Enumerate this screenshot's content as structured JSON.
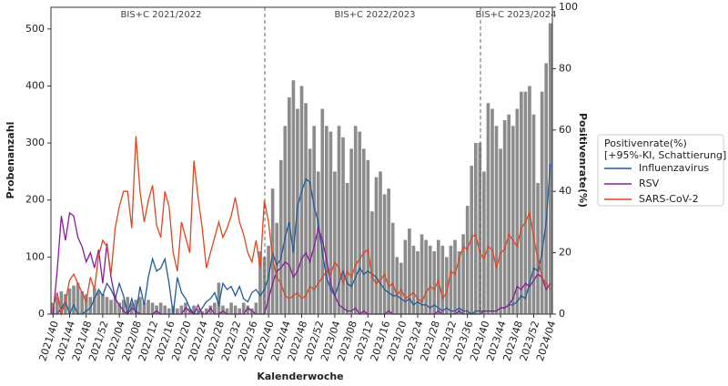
{
  "chart_data": {
    "type": "bar_line",
    "xlabel": "Kalenderwoche",
    "ylabel": "Probenanzahl",
    "y2label": "Positivenrate(%)",
    "seasons": [
      "BIS+C 2021/2022",
      "BIS+C 2022/2023",
      "BIS+C 2023/2024"
    ],
    "legend_title": [
      "Positivenrate(%)",
      "[+95%-KI, Schattierung]"
    ],
    "legend_loc": "right",
    "categories": [
      "2021/40",
      null,
      null,
      null,
      "2021/44",
      null,
      null,
      null,
      "2021/48",
      null,
      null,
      null,
      "2021/52",
      null,
      null,
      null,
      "2022/04",
      null,
      null,
      null,
      "2022/08",
      null,
      null,
      null,
      "2022/12",
      null,
      null,
      null,
      "2022/16",
      null,
      null,
      null,
      "2022/20",
      null,
      null,
      null,
      "2022/24",
      null,
      null,
      null,
      "2022/28",
      null,
      null,
      null,
      "2022/32",
      null,
      null,
      null,
      "2022/36",
      null,
      null,
      null,
      "2022/40",
      null,
      null,
      null,
      "2022/44",
      null,
      null,
      null,
      "2022/48",
      null,
      null,
      null,
      "2022/52",
      null,
      null,
      null,
      "2023/04",
      null,
      null,
      null,
      "2023/08",
      null,
      null,
      null,
      "2023/12",
      null,
      null,
      null,
      "2023/16",
      null,
      null,
      null,
      "2023/20",
      null,
      null,
      null,
      "2023/24",
      null,
      null,
      null,
      "2023/28",
      null,
      null,
      null,
      "2023/32",
      null,
      null,
      null,
      "2023/36",
      null,
      null,
      null,
      "2023/40",
      null,
      null,
      null,
      "2023/44",
      null,
      null,
      null,
      "2023/48",
      null,
      null,
      null,
      "2023/52",
      null,
      null,
      null,
      "2024/04"
    ],
    "bars": {
      "color": "#8c8c8c",
      "values": [
        20,
        30,
        40,
        35,
        45,
        50,
        55,
        40,
        35,
        30,
        45,
        40,
        35,
        30,
        25,
        30,
        20,
        25,
        30,
        20,
        25,
        30,
        20,
        25,
        20,
        15,
        20,
        15,
        10,
        15,
        10,
        15,
        20,
        10,
        15,
        10,
        5,
        10,
        15,
        20,
        55,
        15,
        10,
        20,
        15,
        10,
        20,
        15,
        10,
        20,
        110,
        100,
        120,
        220,
        160,
        270,
        330,
        380,
        410,
        360,
        400,
        370,
        290,
        330,
        250,
        360,
        330,
        320,
        250,
        330,
        310,
        230,
        290,
        330,
        320,
        290,
        270,
        180,
        240,
        250,
        210,
        220,
        160,
        100,
        90,
        130,
        150,
        120,
        110,
        140,
        130,
        120,
        110,
        130,
        120,
        100,
        120,
        130,
        110,
        140,
        190,
        260,
        300,
        300,
        250,
        370,
        360,
        330,
        290,
        340,
        350,
        330,
        360,
        390,
        390,
        400,
        350,
        230,
        390,
        440,
        510
      ]
    },
    "series": [
      {
        "name": "Influenzavirus",
        "color": "#1f5c99",
        "axis": "y2",
        "values": [
          0,
          0,
          2,
          4,
          0,
          3,
          0,
          0,
          1,
          2,
          5,
          8,
          6,
          10,
          8,
          5,
          10,
          6,
          0,
          5,
          0,
          9,
          3,
          12,
          18,
          14,
          15,
          18,
          10,
          0,
          12,
          7,
          5,
          2,
          0,
          0,
          2,
          4,
          5,
          7,
          3,
          10,
          8,
          9,
          6,
          9,
          5,
          4,
          7,
          8,
          6,
          8,
          12,
          20,
          16,
          18,
          25,
          30,
          20,
          35,
          40,
          44,
          43,
          35,
          30,
          20,
          12,
          8,
          6,
          10,
          14,
          10,
          9,
          12,
          15,
          13,
          14,
          13,
          12,
          10,
          8,
          7,
          6,
          6,
          5,
          4,
          5,
          3,
          4,
          3,
          3,
          2,
          3,
          2,
          1,
          2,
          1,
          1,
          2,
          1,
          1,
          0,
          1,
          1,
          1,
          1,
          1,
          1,
          2,
          2,
          3,
          3,
          4,
          6,
          5,
          10,
          15,
          14,
          20,
          30,
          49
        ]
      },
      {
        "name": "RSV",
        "color": "#8b1a9b",
        "axis": "y2",
        "values": [
          0,
          14,
          32,
          24,
          33,
          32,
          25,
          22,
          17,
          20,
          15,
          21,
          10,
          23,
          12,
          5,
          3,
          1,
          0,
          2,
          1,
          0,
          0,
          0,
          0,
          1,
          0,
          0,
          0,
          0,
          0,
          0,
          2,
          1,
          0,
          3,
          0,
          0,
          2,
          0,
          0,
          1,
          0,
          0,
          0,
          0,
          0,
          2,
          1,
          0,
          0,
          0,
          5,
          10,
          14,
          15,
          17,
          16,
          12,
          14,
          18,
          20,
          17,
          22,
          28,
          24,
          18,
          10,
          6,
          3,
          2,
          1,
          1,
          2,
          0,
          1,
          0,
          0,
          0,
          0,
          0,
          1,
          0,
          0,
          0,
          0,
          0,
          0,
          0,
          0,
          0,
          0,
          0,
          1,
          0,
          0,
          0,
          0,
          1,
          0,
          0,
          0,
          0,
          0,
          1,
          1,
          1,
          1,
          2,
          2,
          3,
          5,
          9,
          8,
          10,
          9,
          11,
          13,
          12,
          8,
          10
        ]
      },
      {
        "name": "SARS-CoV-2",
        "color": "#e0451f",
        "axis": "y2",
        "values": [
          2,
          7,
          0,
          4,
          11,
          13,
          10,
          7,
          4,
          12,
          8,
          19,
          24,
          22,
          13,
          28,
          35,
          40,
          40,
          28,
          58,
          40,
          30,
          37,
          42,
          29,
          25,
          40,
          35,
          20,
          14,
          30,
          25,
          20,
          50,
          38,
          28,
          15,
          20,
          25,
          30,
          25,
          28,
          32,
          38,
          30,
          26,
          20,
          17,
          24,
          15,
          37,
          30,
          18,
          12,
          10,
          6,
          5,
          6,
          7,
          5,
          6,
          9,
          8,
          10,
          12,
          14,
          13,
          17,
          15,
          10,
          14,
          12,
          16,
          18,
          20,
          21,
          12,
          10,
          11,
          13,
          9,
          10,
          6,
          8,
          5,
          6,
          7,
          5,
          4,
          7,
          9,
          8,
          11,
          5,
          7,
          14,
          13,
          18,
          22,
          21,
          25,
          26,
          20,
          18,
          22,
          21,
          15,
          20,
          21,
          26,
          24,
          22,
          28,
          30,
          33,
          25,
          18,
          12,
          10,
          8
        ]
      }
    ],
    "ylim": [
      0,
      538
    ],
    "yticks": [
      0,
      100,
      200,
      300,
      400,
      500
    ],
    "y2lim": [
      0,
      100
    ],
    "y2ticks": [
      0,
      20,
      40,
      60,
      80,
      100
    ]
  }
}
